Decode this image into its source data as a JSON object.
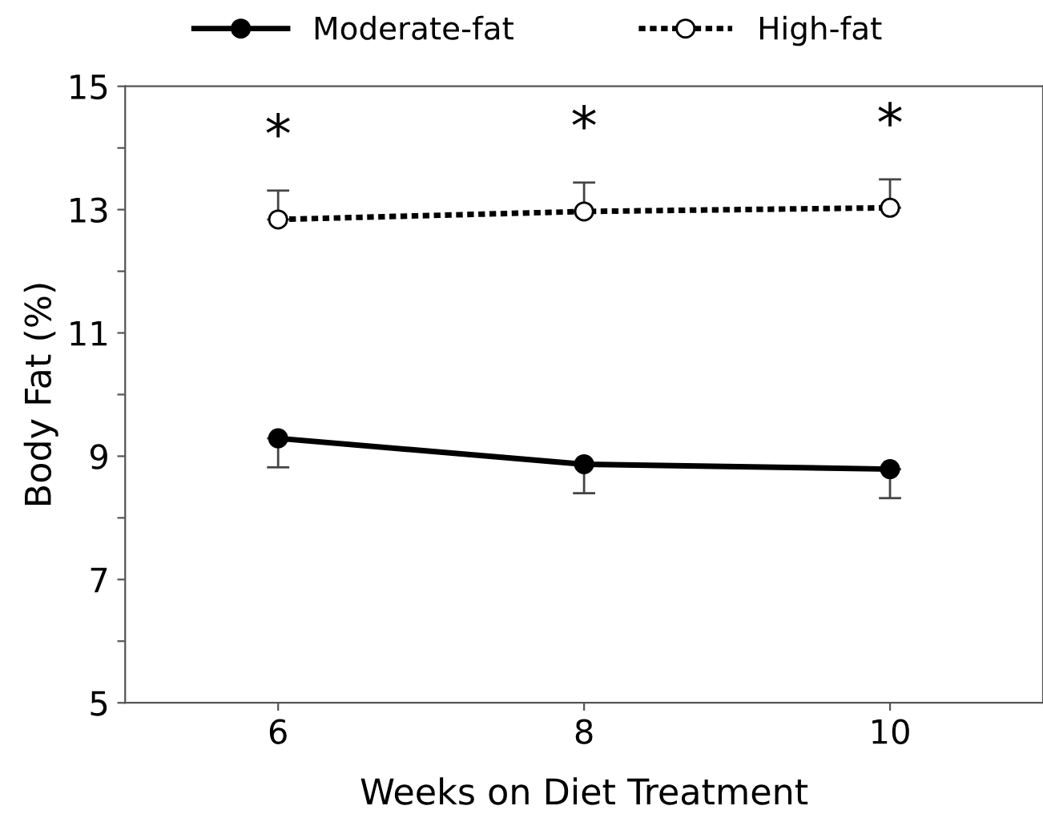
{
  "chart_data": {
    "type": "line",
    "xlabel": "Weeks on Diet Treatment",
    "ylabel": "Body Fat (%)",
    "x": [
      6,
      8,
      10
    ],
    "series": [
      {
        "name": "Moderate-fat",
        "color": "#000000",
        "values": [
          9.29,
          8.87,
          8.79
        ],
        "errors": [
          [
            8.82,
            9.29
          ],
          [
            8.4,
            8.87
          ],
          [
            8.32,
            8.79
          ]
        ],
        "marker": "circle",
        "line_style": "solid"
      },
      {
        "name": "High-fat",
        "color": "#000000",
        "values": [
          12.84,
          12.97,
          13.03
        ],
        "errors": [
          [
            12.84,
            13.31
          ],
          [
            12.97,
            13.44
          ],
          [
            13.03,
            13.49
          ]
        ],
        "marker": "circle",
        "line_style": "dotted"
      }
    ],
    "xlim": [
      5,
      11
    ],
    "xticks": [
      6,
      8,
      10
    ],
    "ylim": [
      5,
      15
    ],
    "yticks": [
      5,
      {
        "value": 6,
        "label": null
      },
      7,
      {
        "value": 8,
        "label": null
      },
      9,
      {
        "value": 10,
        "label": null
      },
      11,
      {
        "value": 12,
        "label": null
      },
      13,
      {
        "value": 14,
        "label": null
      },
      15
    ],
    "annotations": [
      "*",
      "*",
      "*"
    ],
    "legend": "top",
    "grid": false
  }
}
